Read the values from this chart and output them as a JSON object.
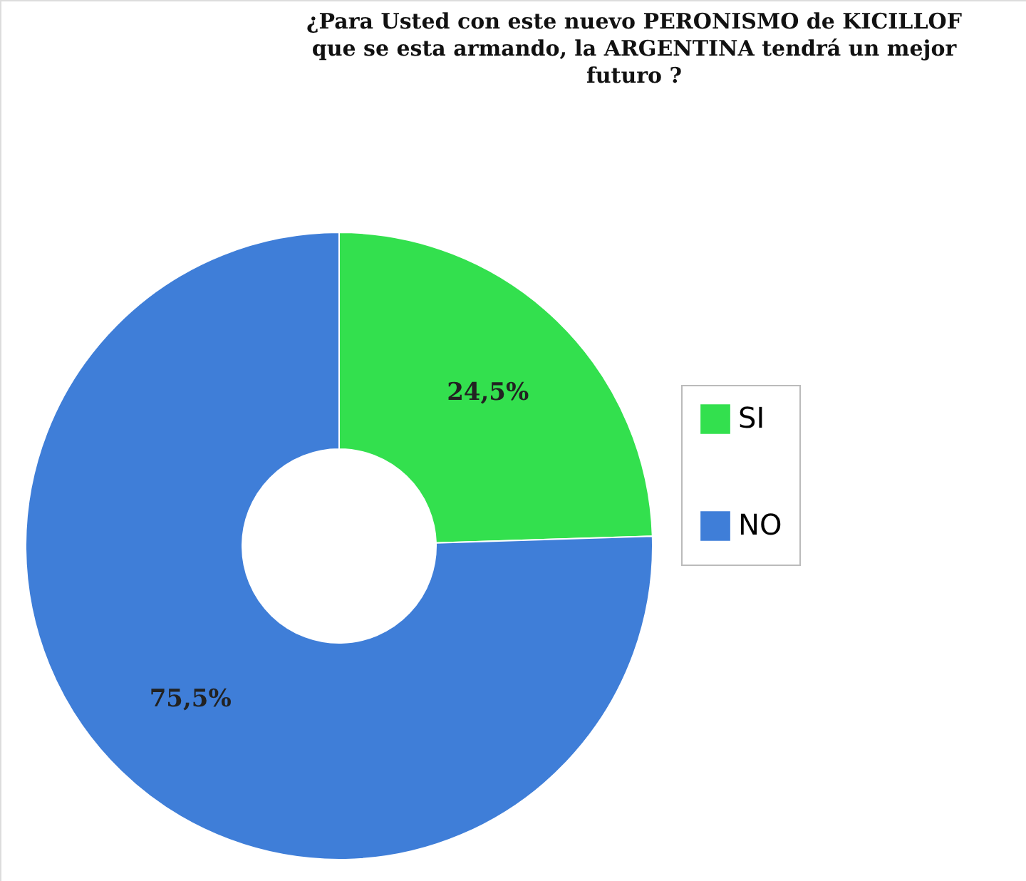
{
  "chart_data": {
    "type": "donut",
    "title": "¿Para Usted con este nuevo PERONISMO de KICILLOF\nque se esta armando, la ARGENTINA tendrá un mejor\nfuturo ?",
    "categories": [
      "SI",
      "NO"
    ],
    "values": [
      24.5,
      75.5
    ],
    "colors": [
      "#33e04e",
      "#3f7ed8"
    ],
    "value_labels": [
      "24,5%",
      "75,5%"
    ],
    "legend": "right"
  }
}
